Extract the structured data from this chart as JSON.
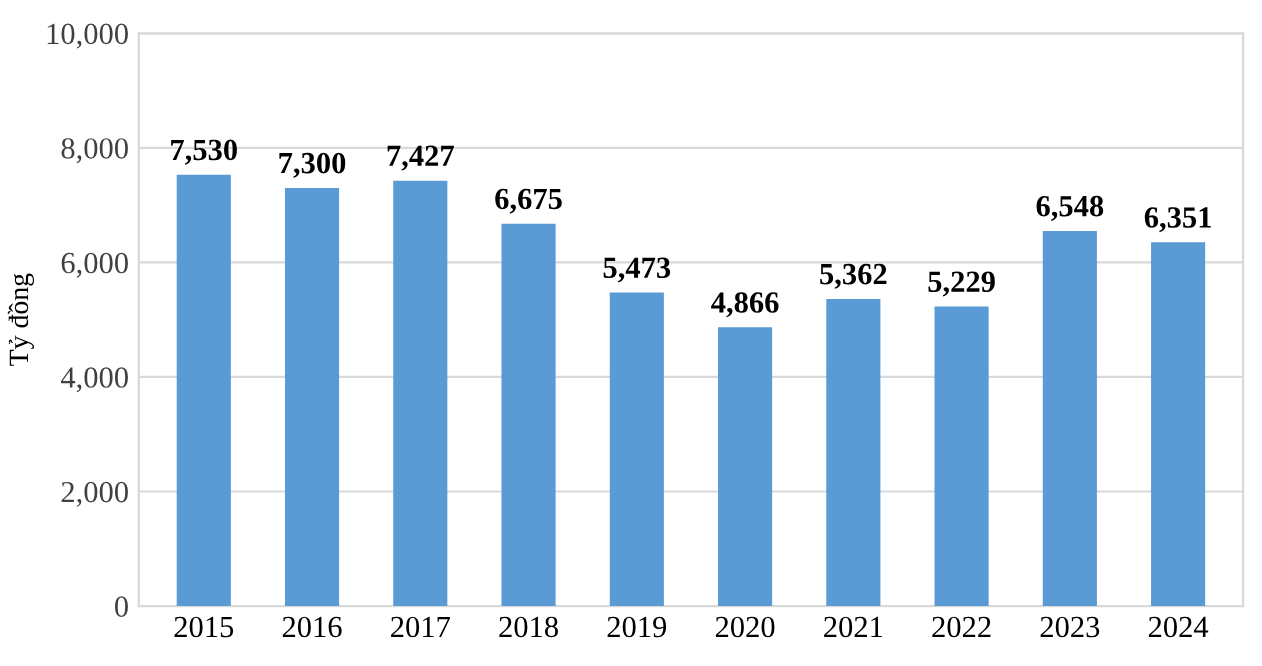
{
  "chart_data": {
    "type": "bar",
    "ylabel": "Tỷ đồng",
    "categories": [
      "2015",
      "2016",
      "2017",
      "2018",
      "2019",
      "2020",
      "2021",
      "2022",
      "2023",
      "2024"
    ],
    "values": [
      7530,
      7300,
      7427,
      6675,
      5473,
      4866,
      5362,
      5229,
      6548,
      6351
    ],
    "color": "#5b9bd5",
    "data_labels": true,
    "value_labels": [
      "7,530",
      "7,300",
      "7,427",
      "6,675",
      "5,473",
      "4,866",
      "5,362",
      "5,229",
      "6,548",
      "6,351"
    ],
    "ylim": [
      0,
      10000
    ],
    "yticks": [
      {
        "value": 0,
        "label": "0"
      },
      {
        "value": 2000,
        "label": "2,000"
      },
      {
        "value": 4000,
        "label": "4,000"
      },
      {
        "value": 6000,
        "label": "6,000"
      },
      {
        "value": 8000,
        "label": "8,000"
      },
      {
        "value": 10000,
        "label": "10,000"
      }
    ],
    "grid": "y"
  }
}
